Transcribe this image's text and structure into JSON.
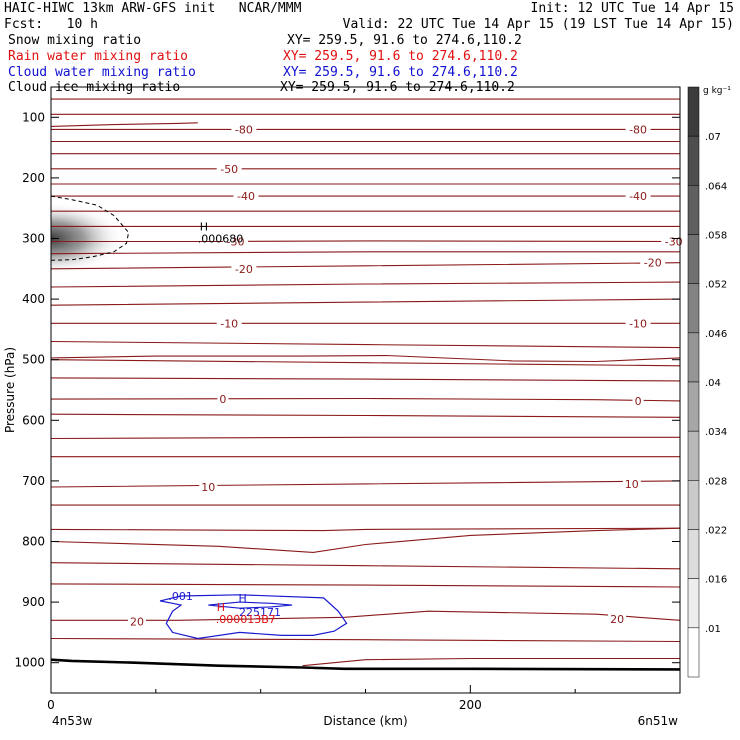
{
  "header": {
    "title": "HAIC-HIWC 13km ARW-GFS init   NCAR/MMM",
    "init": "Init: 12 UTC Tue 14 Apr 15",
    "fcst": "Fcst:   10 h",
    "valid": "Valid: 22 UTC Tue 14 Apr 15 (19 LST Tue 14 Apr 15)"
  },
  "fields": [
    {
      "name": "Snow mixing ratio",
      "xy": "XY= 259.5, 91.6 to 274.6,110.2",
      "color": "#000000"
    },
    {
      "name": "Rain water mixing ratio",
      "xy": "XY= 259.5, 91.6 to 274.6,110.2",
      "color": "#e01010"
    },
    {
      "name": "Cloud water mixing ratio",
      "xy": "XY= 259.5, 91.6 to 274.6,110.2",
      "color": "#1010d0"
    },
    {
      "name": "Cloud ice mixing ratio",
      "xy": "XY= 259.5, 91.6 to 274.6,110.2",
      "color": "#000000"
    }
  ],
  "chart_data": {
    "type": "contour",
    "xlabel": "Distance (km)",
    "ylabel": "Pressure (hPa)",
    "xlim": [
      0,
      300
    ],
    "ylim": [
      1050,
      50
    ],
    "x_ticks": [
      0,
      200
    ],
    "y_ticks": [
      100,
      200,
      300,
      400,
      500,
      600,
      700,
      800,
      900,
      1000
    ],
    "x_end_labels": {
      "left": "4n53w",
      "right": "6n51w"
    },
    "temperature_color": "#8b1a1a",
    "temperature_labels": [
      {
        "value": "-80",
        "x": 92,
        "p": 120
      },
      {
        "value": "-80",
        "x": 280,
        "p": 120
      },
      {
        "value": "-50",
        "x": 85,
        "p": 185
      },
      {
        "value": "-40",
        "x": 93,
        "p": 230
      },
      {
        "value": "-40",
        "x": 280,
        "p": 230
      },
      {
        "value": "-30",
        "x": 88,
        "p": 305
      },
      {
        "value": "-30",
        "x": 297,
        "p": 305
      },
      {
        "value": "-20",
        "x": 92,
        "p": 350
      },
      {
        "value": "-20",
        "x": 287,
        "p": 340
      },
      {
        "value": "-10",
        "x": 85,
        "p": 440
      },
      {
        "value": "-10",
        "x": 280,
        "p": 440
      },
      {
        "value": "0",
        "x": 82,
        "p": 565
      },
      {
        "value": "0",
        "x": 280,
        "p": 568
      },
      {
        "value": "10",
        "x": 75,
        "p": 710
      },
      {
        "value": "10",
        "x": 277,
        "p": 705
      },
      {
        "value": "20",
        "x": 41,
        "p": 932
      },
      {
        "value": "20",
        "x": 270,
        "p": 928
      }
    ],
    "isotherms": [
      {
        "x": [
          0,
          300
        ],
        "p": [
          70,
          70
        ]
      },
      {
        "x": [
          0,
          300
        ],
        "p": [
          95,
          95
        ]
      },
      {
        "x": [
          0,
          300
        ],
        "p": [
          120,
          120
        ]
      },
      {
        "x": [
          0,
          300
        ],
        "p": [
          140,
          140
        ]
      },
      {
        "x": [
          0,
          300
        ],
        "p": [
          160,
          160
        ]
      },
      {
        "x": [
          0,
          300
        ],
        "p": [
          185,
          185
        ]
      },
      {
        "x": [
          0,
          300
        ],
        "p": [
          210,
          210
        ]
      },
      {
        "x": [
          0,
          300
        ],
        "p": [
          230,
          230
        ]
      },
      {
        "x": [
          0,
          300
        ],
        "p": [
          255,
          255
        ]
      },
      {
        "x": [
          0,
          300
        ],
        "p": [
          280,
          280
        ]
      },
      {
        "x": [
          0,
          80,
          150,
          300
        ],
        "p": [
          305,
          305,
          304,
          305
        ]
      },
      {
        "x": [
          0,
          150,
          300
        ],
        "p": [
          325,
          322,
          322
        ]
      },
      {
        "x": [
          0,
          150,
          300
        ],
        "p": [
          350,
          345,
          340
        ]
      },
      {
        "x": [
          0,
          150,
          300
        ],
        "p": [
          380,
          375,
          372
        ]
      },
      {
        "x": [
          0,
          150,
          300
        ],
        "p": [
          410,
          405,
          400
        ]
      },
      {
        "x": [
          0,
          150,
          300
        ],
        "p": [
          440,
          440,
          440
        ]
      },
      {
        "x": [
          0,
          150,
          300
        ],
        "p": [
          470,
          475,
          480
        ]
      },
      {
        "x": [
          0,
          150,
          300
        ],
        "p": [
          500,
          505,
          510
        ]
      },
      {
        "x": [
          0,
          50,
          120,
          160,
          220,
          260,
          300
        ],
        "p": [
          497,
          494,
          494,
          493,
          502,
          503,
          497
        ]
      },
      {
        "x": [
          0,
          150,
          300
        ],
        "p": [
          530,
          532,
          535
        ]
      },
      {
        "x": [
          0,
          150,
          260,
          300
        ],
        "p": [
          565,
          564,
          566,
          568
        ]
      },
      {
        "x": [
          0,
          150,
          300
        ],
        "p": [
          590,
          592,
          595
        ]
      },
      {
        "x": [
          0,
          150,
          300
        ],
        "p": [
          630,
          628,
          628
        ]
      },
      {
        "x": [
          0,
          150,
          300
        ],
        "p": [
          660,
          660,
          660
        ]
      },
      {
        "x": [
          0,
          150,
          300
        ],
        "p": [
          710,
          705,
          700
        ]
      },
      {
        "x": [
          0,
          150,
          300
        ],
        "p": [
          740,
          740,
          740
        ]
      },
      {
        "x": [
          0,
          130,
          150,
          300
        ],
        "p": [
          780,
          782,
          780,
          778
        ]
      },
      {
        "x": [
          0,
          80,
          125,
          150,
          200,
          260,
          300
        ],
        "p": [
          800,
          808,
          818,
          805,
          790,
          782,
          778
        ]
      },
      {
        "x": [
          0,
          150,
          300
        ],
        "p": [
          835,
          840,
          845
        ]
      },
      {
        "x": [
          0,
          150,
          300
        ],
        "p": [
          870,
          872,
          875
        ]
      },
      {
        "x": [
          0,
          60,
          140,
          180,
          260,
          300
        ],
        "p": [
          930,
          930,
          925,
          915,
          920,
          930
        ]
      },
      {
        "x": [
          0,
          150,
          300
        ],
        "p": [
          960,
          962,
          965
        ]
      },
      {
        "x": [
          120,
          150,
          200,
          300
        ],
        "p": [
          1005,
          995,
          993,
          993
        ]
      },
      {
        "x": [
          0,
          30,
          60,
          70
        ],
        "p": [
          115,
          112,
          110,
          109
        ]
      }
    ],
    "ground": {
      "x": [
        0,
        10,
        40,
        80,
        120,
        140,
        200,
        300
      ],
      "p": [
        995,
        997,
        1000,
        1005,
        1008,
        1010,
        1010,
        1011
      ]
    },
    "cloud_ice_shading": {
      "x_center": 0,
      "p_center": 300,
      "x_radius": 35,
      "p_radius": 60
    },
    "snow_contour": {
      "x": [
        0,
        10,
        22,
        30,
        37,
        36,
        30,
        20,
        10,
        0
      ],
      "p": [
        230,
        236,
        245,
        262,
        290,
        308,
        322,
        330,
        335,
        336
      ]
    },
    "snow_max_label": {
      "mark": "H",
      "value": ".000680",
      "x": 70,
      "p": 300
    },
    "cloud_water_contour": {
      "x": [
        52,
        62,
        90,
        130,
        137,
        141,
        135,
        125,
        110,
        90,
        70,
        58,
        55,
        58,
        62,
        58,
        52
      ],
      "p": [
        898,
        890,
        888,
        893,
        915,
        935,
        948,
        955,
        955,
        950,
        960,
        950,
        935,
        915,
        905,
        902,
        898
      ],
      "level_label": {
        "value": ".001",
        "x": 56,
        "p": 890
      },
      "max_label": {
        "mark": "H",
        "value": ".225171",
        "x": 88,
        "p": 903
      }
    },
    "cloud_water_inner_contour": {
      "x": [
        75,
        90,
        105,
        115,
        105,
        90,
        75
      ],
      "p": [
        905,
        900,
        902,
        905,
        908,
        910,
        905
      ]
    },
    "rain_max_label": {
      "mark": "H",
      "value": ".000013B7",
      "x": 80,
      "p": 918
    },
    "colorbar": {
      "unit": "g kg⁻¹",
      "labels": [
        ".07",
        ".064",
        ".058",
        ".052",
        ".046",
        ".04",
        ".034",
        ".028",
        ".022",
        ".016",
        ".01"
      ],
      "max_color": "#3c3c3c",
      "min_color": "#ffffff"
    }
  }
}
